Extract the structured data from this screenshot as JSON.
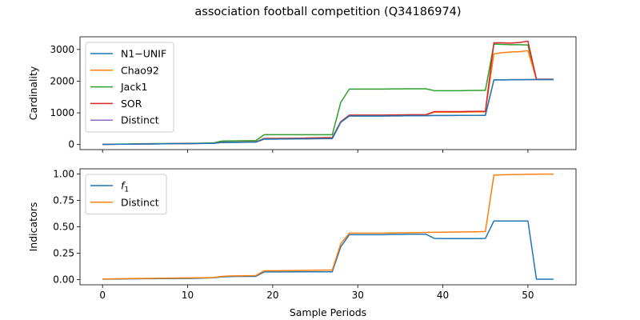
{
  "title": "association football competition (Q34186974)",
  "chart_data": [
    {
      "type": "line",
      "ylabel": "Cardinality",
      "xlabel": "",
      "xlim": [
        -2.65,
        55.65
      ],
      "ylim": [
        -160,
        3400
      ],
      "xticks": [
        0,
        10,
        20,
        30,
        40,
        50
      ],
      "yticks": [
        0,
        1000,
        2000,
        3000
      ],
      "ytick_labels": [
        "0",
        "1000",
        "2000",
        "3000"
      ],
      "legend_position": "upper-left",
      "x": [
        0,
        1,
        2,
        3,
        4,
        5,
        6,
        7,
        8,
        9,
        10,
        11,
        12,
        13,
        14,
        15,
        16,
        17,
        18,
        19,
        20,
        21,
        22,
        23,
        24,
        25,
        26,
        27,
        28,
        29,
        30,
        31,
        32,
        33,
        34,
        35,
        36,
        37,
        38,
        39,
        40,
        41,
        42,
        43,
        44,
        45,
        46,
        47,
        48,
        49,
        50,
        51,
        52,
        53
      ],
      "series": [
        {
          "name": "Jack1",
          "color": "#2ca02c",
          "values": [
            10,
            12,
            14,
            18,
            22,
            25,
            28,
            30,
            32,
            35,
            38,
            40,
            45,
            50,
            110,
            115,
            118,
            120,
            120,
            310,
            310,
            310,
            310,
            310,
            310,
            310,
            310,
            310,
            1330,
            1750,
            1750,
            1750,
            1750,
            1750,
            1755,
            1755,
            1760,
            1760,
            1760,
            1700,
            1700,
            1700,
            1700,
            1705,
            1710,
            1710,
            3170,
            3160,
            3150,
            3150,
            3140,
            2060,
            2060,
            2060
          ]
        },
        {
          "name": "Chao92",
          "color": "#ff7f0e",
          "values": [
            5,
            8,
            10,
            12,
            15,
            18,
            20,
            22,
            25,
            28,
            30,
            32,
            35,
            40,
            70,
            75,
            78,
            80,
            80,
            185,
            190,
            190,
            195,
            200,
            205,
            210,
            215,
            220,
            720,
            920,
            920,
            920,
            920,
            920,
            925,
            925,
            930,
            930,
            935,
            1020,
            1020,
            1020,
            1020,
            1025,
            1030,
            1030,
            2860,
            2900,
            2920,
            2930,
            2960,
            2060,
            2060,
            2060
          ]
        },
        {
          "name": "SOR",
          "color": "#d62728",
          "values": [
            5,
            8,
            10,
            12,
            15,
            18,
            20,
            22,
            25,
            28,
            30,
            32,
            35,
            40,
            70,
            75,
            78,
            80,
            80,
            190,
            192,
            195,
            198,
            200,
            205,
            210,
            215,
            220,
            720,
            930,
            930,
            930,
            930,
            930,
            935,
            935,
            940,
            940,
            940,
            1040,
            1040,
            1040,
            1040,
            1045,
            1050,
            1050,
            3210,
            3210,
            3200,
            3220,
            3260,
            2060,
            2060,
            2060
          ]
        },
        {
          "name": "Distinct",
          "color": "#9467bd",
          "values": [
            5,
            8,
            10,
            12,
            15,
            18,
            20,
            22,
            25,
            28,
            30,
            32,
            35,
            40,
            65,
            68,
            70,
            72,
            75,
            170,
            172,
            175,
            178,
            180,
            182,
            185,
            188,
            190,
            700,
            900,
            900,
            900,
            900,
            900,
            905,
            905,
            910,
            910,
            910,
            915,
            915,
            915,
            920,
            920,
            920,
            920,
            2040,
            2040,
            2045,
            2045,
            2050,
            2050,
            2050,
            2050
          ]
        },
        {
          "name": "N1−UNIF",
          "color": "#1f77b4",
          "values": [
            5,
            8,
            10,
            12,
            15,
            18,
            20,
            22,
            25,
            28,
            30,
            32,
            35,
            40,
            65,
            68,
            70,
            72,
            75,
            170,
            172,
            175,
            178,
            180,
            182,
            185,
            188,
            190,
            700,
            900,
            900,
            900,
            900,
            900,
            905,
            905,
            910,
            910,
            910,
            915,
            915,
            915,
            920,
            920,
            920,
            920,
            2040,
            2040,
            2045,
            2045,
            2050,
            2050,
            2050,
            2050
          ]
        }
      ],
      "legend_order": [
        "N1−UNIF",
        "Chao92",
        "Jack1",
        "SOR",
        "Distinct"
      ]
    },
    {
      "type": "line",
      "ylabel": "Indicators",
      "xlabel": "Sample Periods",
      "xlim": [
        -2.65,
        55.65
      ],
      "ylim": [
        -0.05,
        1.05
      ],
      "xticks": [
        0,
        10,
        20,
        30,
        40,
        50
      ],
      "xtick_labels": [
        "0",
        "10",
        "20",
        "30",
        "40",
        "50"
      ],
      "yticks": [
        0,
        0.25,
        0.5,
        0.75,
        1.0
      ],
      "ytick_labels": [
        "0.00",
        "0.25",
        "0.50",
        "0.75",
        "1.00"
      ],
      "legend_position": "upper-left",
      "x": [
        0,
        1,
        2,
        3,
        4,
        5,
        6,
        7,
        8,
        9,
        10,
        11,
        12,
        13,
        14,
        15,
        16,
        17,
        18,
        19,
        20,
        21,
        22,
        23,
        24,
        25,
        26,
        27,
        28,
        29,
        30,
        31,
        32,
        33,
        34,
        35,
        36,
        37,
        38,
        39,
        40,
        41,
        42,
        43,
        44,
        45,
        46,
        47,
        48,
        49,
        50,
        51,
        52,
        53
      ],
      "series": [
        {
          "name": "f₁",
          "legend_main": "f",
          "legend_sub": "1",
          "color": "#1f77b4",
          "values": [
            0.003,
            0.004,
            0.005,
            0.006,
            0.007,
            0.008,
            0.008,
            0.009,
            0.009,
            0.01,
            0.01,
            0.012,
            0.014,
            0.016,
            0.025,
            0.028,
            0.03,
            0.03,
            0.03,
            0.072,
            0.072,
            0.072,
            0.072,
            0.073,
            0.073,
            0.073,
            0.073,
            0.073,
            0.31,
            0.425,
            0.425,
            0.425,
            0.425,
            0.425,
            0.428,
            0.428,
            0.43,
            0.43,
            0.43,
            0.39,
            0.388,
            0.388,
            0.388,
            0.388,
            0.388,
            0.39,
            0.555,
            0.555,
            0.555,
            0.555,
            0.555,
            0.003,
            0.003,
            0.003
          ]
        },
        {
          "name": "Distinct",
          "color": "#ff7f0e",
          "values": [
            0.004,
            0.006,
            0.008,
            0.009,
            0.01,
            0.011,
            0.012,
            0.013,
            0.013,
            0.014,
            0.015,
            0.016,
            0.017,
            0.018,
            0.03,
            0.033,
            0.035,
            0.036,
            0.037,
            0.083,
            0.083,
            0.084,
            0.085,
            0.086,
            0.087,
            0.088,
            0.089,
            0.09,
            0.34,
            0.44,
            0.44,
            0.44,
            0.44,
            0.44,
            0.442,
            0.443,
            0.444,
            0.445,
            0.447,
            0.448,
            0.449,
            0.45,
            0.451,
            0.452,
            0.453,
            0.455,
            0.99,
            0.993,
            0.995,
            0.996,
            0.998,
            0.999,
            1.0,
            1.0
          ]
        }
      ],
      "legend_order": [
        "f₁",
        "Distinct"
      ]
    }
  ]
}
